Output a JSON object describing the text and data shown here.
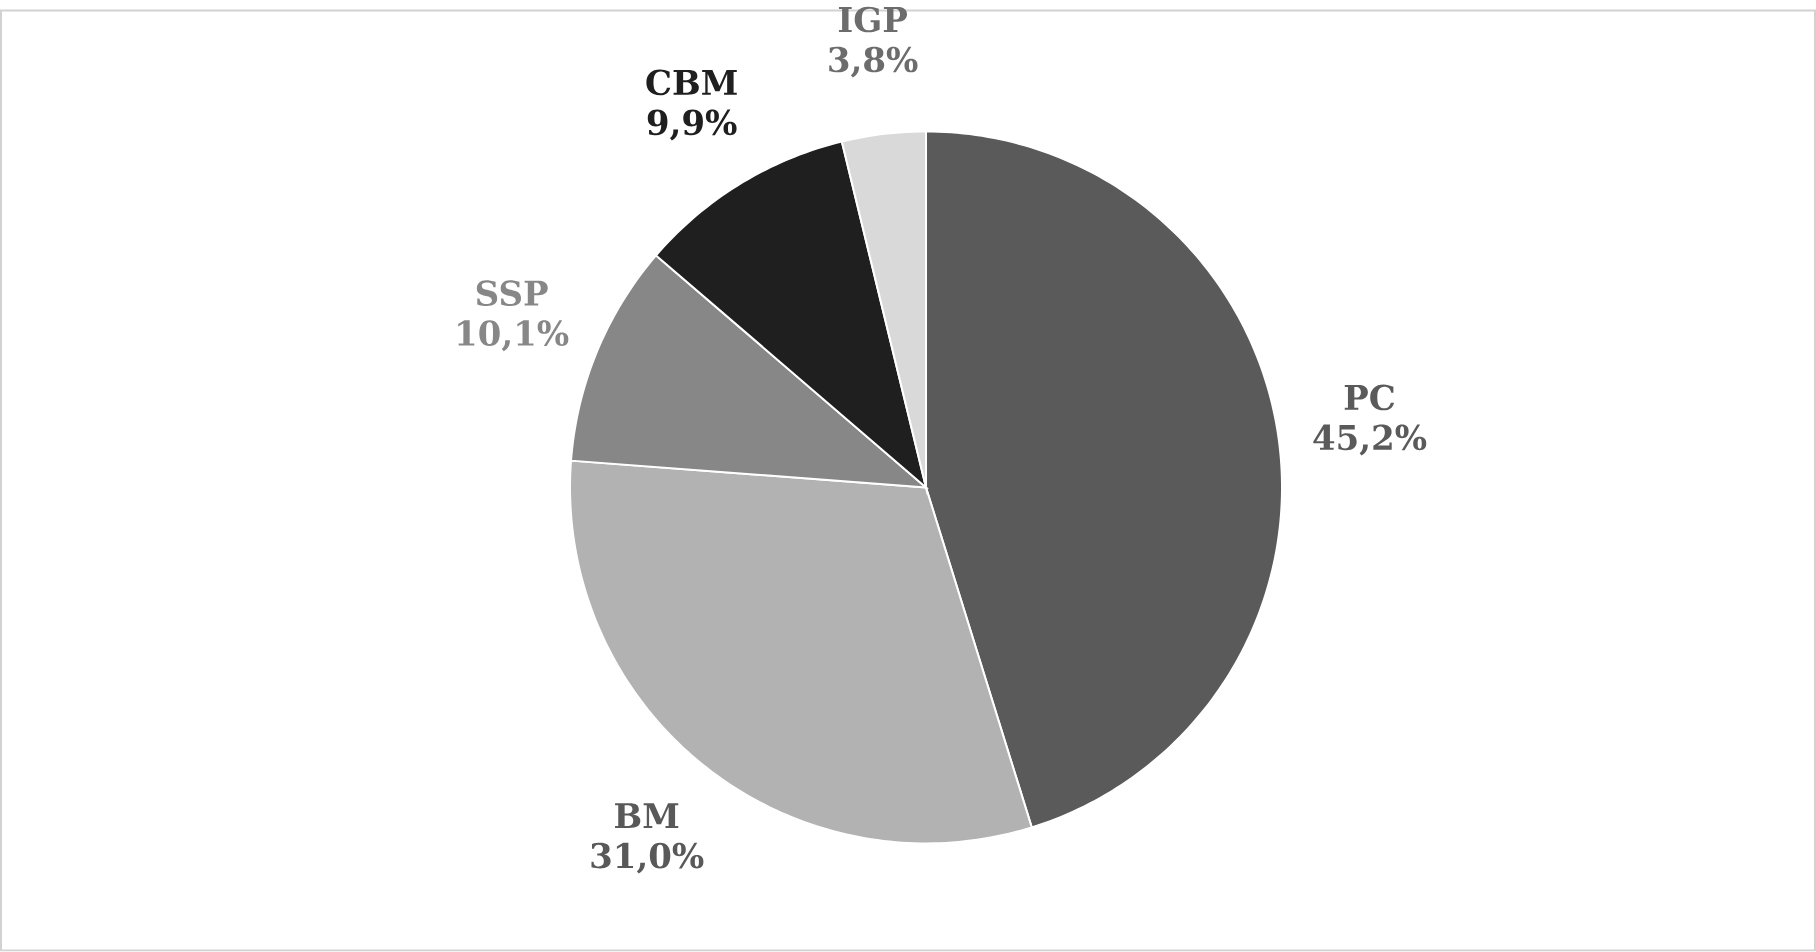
{
  "chart_data": {
    "type": "pie",
    "categories": [
      "PC",
      "BM",
      "SSP",
      "CBM",
      "IGP"
    ],
    "values": [
      45.2,
      31.0,
      10.1,
      9.9,
      3.8
    ],
    "value_labels": [
      "45,2%",
      "31,0%",
      "10,1%",
      "9,9%",
      "3,8%"
    ],
    "colors": [
      "#5a5a5a",
      "#b2b2b2",
      "#878787",
      "#1f1f1f",
      "#d9d9d9"
    ]
  }
}
